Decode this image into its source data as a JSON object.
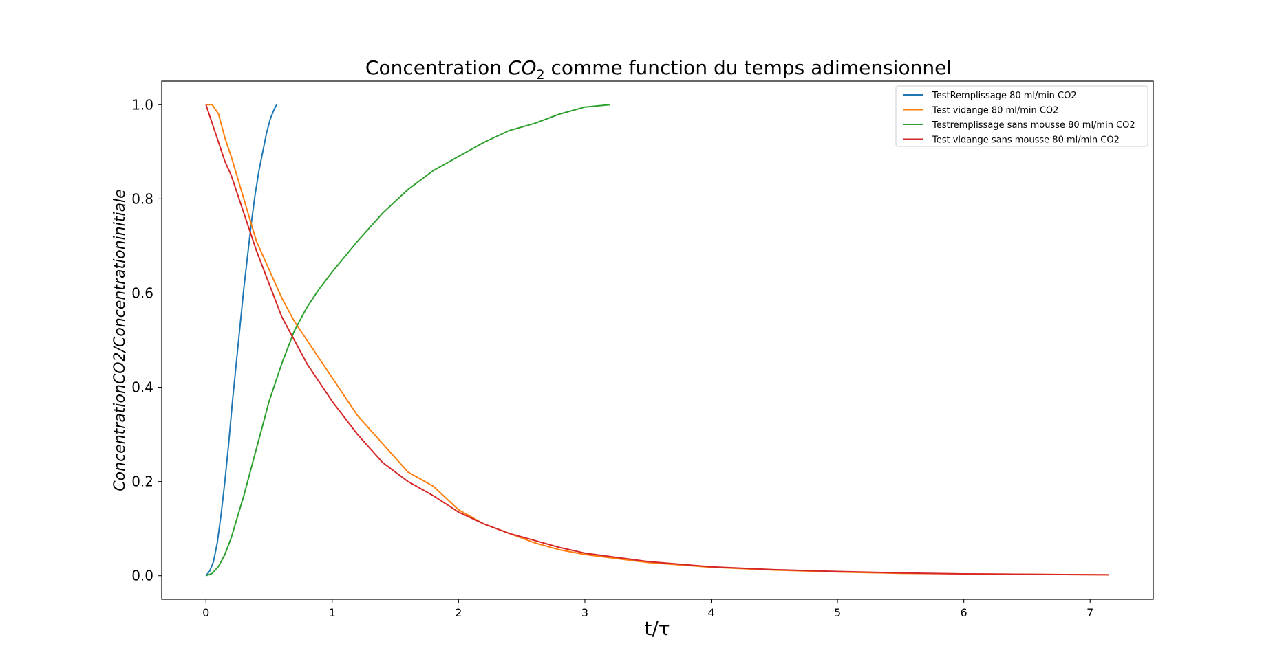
{
  "chart_data": {
    "type": "line",
    "title": {
      "prefix": "Concentration ",
      "math": "CO",
      "subscript": "2",
      "suffix": " comme function du temps adimensionnel"
    },
    "xlabel": "t/τ",
    "ylabel": "ConcentrationCO2/Concentrationinitiale",
    "xlim": [
      -0.35,
      7.5
    ],
    "ylim": [
      -0.05,
      1.05
    ],
    "xticks": [
      0,
      1,
      2,
      3,
      4,
      5,
      6,
      7
    ],
    "xtick_labels": [
      "0",
      "1",
      "2",
      "3",
      "4",
      "5",
      "6",
      "7"
    ],
    "yticks": [
      0.0,
      0.2,
      0.4,
      0.6,
      0.8,
      1.0
    ],
    "ytick_labels": [
      "0.0",
      "0.2",
      "0.4",
      "0.6",
      "0.8",
      "1.0"
    ],
    "grid": false,
    "legend_position": "top-right",
    "series": [
      {
        "name": "TestRemplissage 80 ml/min CO2",
        "color": "#1f77b4",
        "x": [
          0.0,
          0.03,
          0.06,
          0.09,
          0.12,
          0.15,
          0.18,
          0.21,
          0.24,
          0.27,
          0.3,
          0.33,
          0.36,
          0.39,
          0.42,
          0.45,
          0.48,
          0.51,
          0.54,
          0.56
        ],
        "y": [
          0.0,
          0.01,
          0.03,
          0.07,
          0.13,
          0.2,
          0.28,
          0.37,
          0.45,
          0.53,
          0.61,
          0.68,
          0.75,
          0.81,
          0.86,
          0.9,
          0.94,
          0.97,
          0.99,
          1.0
        ]
      },
      {
        "name": "Test vidange 80 ml/min CO2",
        "color": "#ff7f0e",
        "x": [
          0.0,
          0.05,
          0.1,
          0.15,
          0.2,
          0.3,
          0.4,
          0.5,
          0.6,
          0.7,
          0.8,
          1.0,
          1.2,
          1.4,
          1.6,
          1.8,
          2.0,
          2.2,
          2.4,
          2.6,
          2.8,
          3.0,
          3.5,
          4.0,
          4.5,
          5.0,
          5.5,
          6.0,
          6.5,
          7.15
        ],
        "y": [
          1.0,
          1.0,
          0.98,
          0.93,
          0.89,
          0.8,
          0.71,
          0.65,
          0.59,
          0.54,
          0.5,
          0.42,
          0.34,
          0.28,
          0.22,
          0.19,
          0.14,
          0.11,
          0.09,
          0.07,
          0.055,
          0.045,
          0.028,
          0.018,
          0.012,
          0.008,
          0.005,
          0.004,
          0.003,
          0.002
        ]
      },
      {
        "name": "Testremplissage sans mousse 80 ml/min CO2",
        "color": "#2ca02c",
        "x": [
          0.0,
          0.05,
          0.1,
          0.15,
          0.2,
          0.3,
          0.4,
          0.5,
          0.6,
          0.7,
          0.8,
          0.9,
          1.0,
          1.2,
          1.4,
          1.6,
          1.8,
          2.0,
          2.2,
          2.4,
          2.6,
          2.8,
          3.0,
          3.2
        ],
        "y": [
          0.0,
          0.005,
          0.02,
          0.045,
          0.08,
          0.17,
          0.27,
          0.37,
          0.45,
          0.52,
          0.57,
          0.61,
          0.645,
          0.71,
          0.77,
          0.82,
          0.86,
          0.89,
          0.92,
          0.945,
          0.96,
          0.98,
          0.995,
          1.0
        ]
      },
      {
        "name": "Test vidange sans mousse 80 ml/min CO2",
        "color": "#d62728",
        "x": [
          0.0,
          0.05,
          0.1,
          0.15,
          0.2,
          0.3,
          0.4,
          0.5,
          0.6,
          0.7,
          0.8,
          1.0,
          1.2,
          1.4,
          1.6,
          1.8,
          2.0,
          2.2,
          2.4,
          2.6,
          2.8,
          3.0,
          3.5,
          4.0,
          4.5,
          5.0,
          5.5,
          6.0,
          6.5,
          7.15
        ],
        "y": [
          1.0,
          0.96,
          0.92,
          0.88,
          0.85,
          0.77,
          0.69,
          0.62,
          0.55,
          0.5,
          0.45,
          0.37,
          0.3,
          0.24,
          0.2,
          0.17,
          0.135,
          0.11,
          0.09,
          0.075,
          0.06,
          0.048,
          0.03,
          0.019,
          0.013,
          0.009,
          0.006,
          0.004,
          0.003,
          0.002
        ]
      }
    ]
  }
}
